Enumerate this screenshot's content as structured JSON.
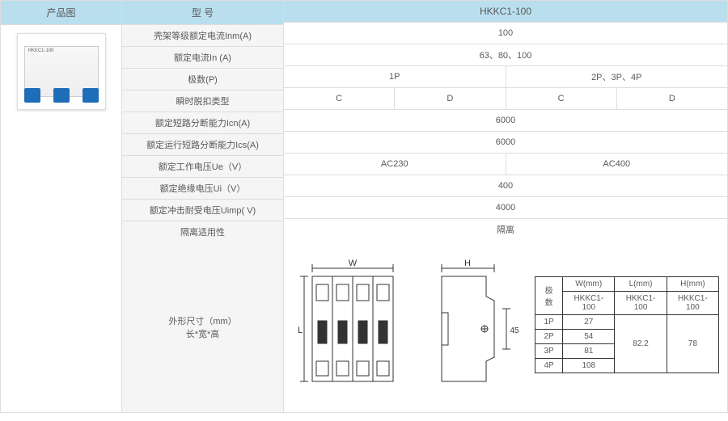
{
  "headers": {
    "img": "产品图",
    "model": "型 号",
    "modelVal": "HKKC1-100"
  },
  "specs": [
    {
      "label": "壳架等级额定电流Inm(A)",
      "vals": [
        "100"
      ]
    },
    {
      "label": "额定电流In (A)",
      "vals": [
        "63、80、100"
      ]
    },
    {
      "label": "极数(P)",
      "vals": [
        "1P",
        "2P、3P、4P"
      ]
    },
    {
      "label": "瞬时脱扣类型",
      "vals": [
        "C",
        "D",
        "C",
        "D"
      ]
    },
    {
      "label": "额定短路分断能力Icn(A)",
      "vals": [
        "6000"
      ]
    },
    {
      "label": "额定运行短路分断能力Ics(A)",
      "vals": [
        "6000"
      ]
    },
    {
      "label": "额定工作电压Ue（V）",
      "vals": [
        "AC230",
        "AC400"
      ]
    },
    {
      "label": "额定绝缘电压Ui（V）",
      "vals": [
        "400"
      ]
    },
    {
      "label": "额定冲击耐受电压Uimp( V)",
      "vals": [
        "4000"
      ]
    },
    {
      "label": "隔离适用性",
      "vals": [
        "隔离"
      ]
    }
  ],
  "dimLabel": "外形尺寸（mm）\n长*宽*高",
  "dimLetters": {
    "W": "W",
    "L": "L",
    "H": "H",
    "d45": "45"
  },
  "dimTable": {
    "h1": "极数",
    "h2": "W(mm)",
    "h3": "L(mm)",
    "h4": "H(mm)",
    "sub": "HKKC1-100",
    "rows": [
      [
        "1P",
        "27"
      ],
      [
        "2P",
        "54"
      ],
      [
        "3P",
        "81"
      ],
      [
        "4P",
        "108"
      ]
    ],
    "L": "82.2",
    "H": "78"
  },
  "colors": {
    "hdr": "#b9dfef",
    "lbl": "#f5f5f5",
    "border": "#dddddd",
    "text": "#595959",
    "switch": "#1e6db8"
  }
}
